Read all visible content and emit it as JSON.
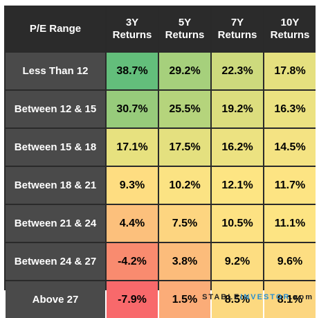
{
  "chart_data": {
    "type": "table",
    "header": {
      "corner": "P/E Range",
      "columns": [
        "3Y\nReturns",
        "5Y\nReturns",
        "7Y\nReturns",
        "10Y\nReturns"
      ]
    },
    "rows": [
      {
        "label": "Less Than 12",
        "values": [
          "38.7%",
          "29.2%",
          "22.3%",
          "17.8%"
        ],
        "colors": [
          "#63be7b",
          "#a6d07c",
          "#cdda7d",
          "#e5e07f"
        ]
      },
      {
        "label": "Between 12 & 15",
        "values": [
          "30.7%",
          "25.5%",
          "19.2%",
          "16.3%"
        ],
        "colors": [
          "#97cb7b",
          "#b5d47c",
          "#dcdd7e",
          "#ece281"
        ]
      },
      {
        "label": "Between 15 & 18",
        "values": [
          "17.1%",
          "17.5%",
          "16.2%",
          "14.5%"
        ],
        "colors": [
          "#e7e17f",
          "#e4e07f",
          "#ece281",
          "#f4e383"
        ]
      },
      {
        "label": "Between 18 & 21",
        "values": [
          "9.3%",
          "10.2%",
          "12.1%",
          "11.7%"
        ],
        "colors": [
          "#fedd81",
          "#fbe383",
          "#fde583",
          "#fde483"
        ]
      },
      {
        "label": "Between 21 & 24",
        "values": [
          "4.4%",
          "7.5%",
          "10.5%",
          "11.1%"
        ],
        "colors": [
          "#fcc07c",
          "#fdd580",
          "#fde283",
          "#fde483"
        ]
      },
      {
        "label": "Between 24 & 27",
        "values": [
          "-4.2%",
          "3.8%",
          "9.2%",
          "9.6%"
        ],
        "colors": [
          "#f98b6f",
          "#fcbc7b",
          "#fddd81",
          "#fdde82"
        ]
      },
      {
        "label": "Above 27",
        "values": [
          "-7.9%",
          "1.5%",
          "8.5%",
          "8.1%"
        ],
        "colors": [
          "#f8696b",
          "#fbac78",
          "#fcd980",
          "#fcd680"
        ]
      }
    ],
    "colors": {
      "header_bg": "#2b2b2b",
      "label_bg": "#4a4a4a",
      "border": "#2a2a2a"
    }
  },
  "watermark": {
    "part1": "STABLE",
    "part2": "INVESTOR",
    "part3": ".com"
  }
}
